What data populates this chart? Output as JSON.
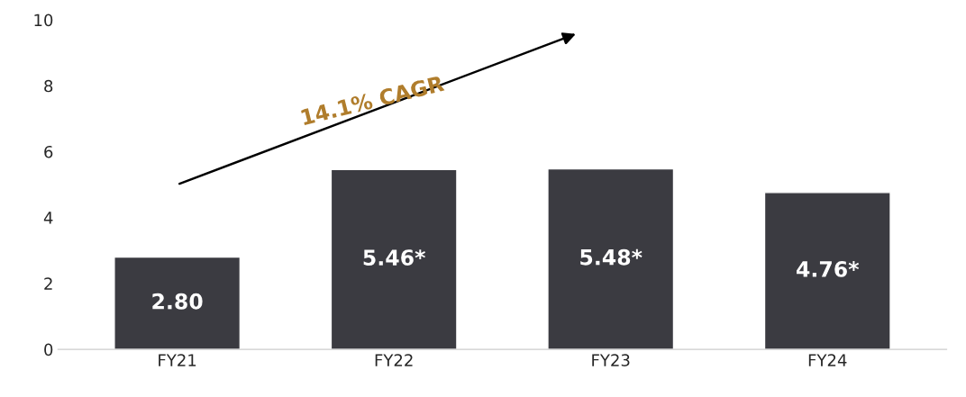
{
  "chart_data": {
    "type": "bar",
    "categories": [
      "FY21",
      "FY22",
      "FY23",
      "FY24"
    ],
    "values": [
      2.8,
      5.46,
      5.48,
      4.76
    ],
    "value_labels": [
      "2.80",
      "5.46*",
      "5.48*",
      "4.76*"
    ],
    "color": "#3b3b41",
    "ylim": [
      0,
      10
    ],
    "yticks": [
      0,
      2,
      4,
      6,
      8,
      10
    ],
    "grid": false,
    "legend": false,
    "annotations": [
      "14.1% CAGR"
    ]
  }
}
